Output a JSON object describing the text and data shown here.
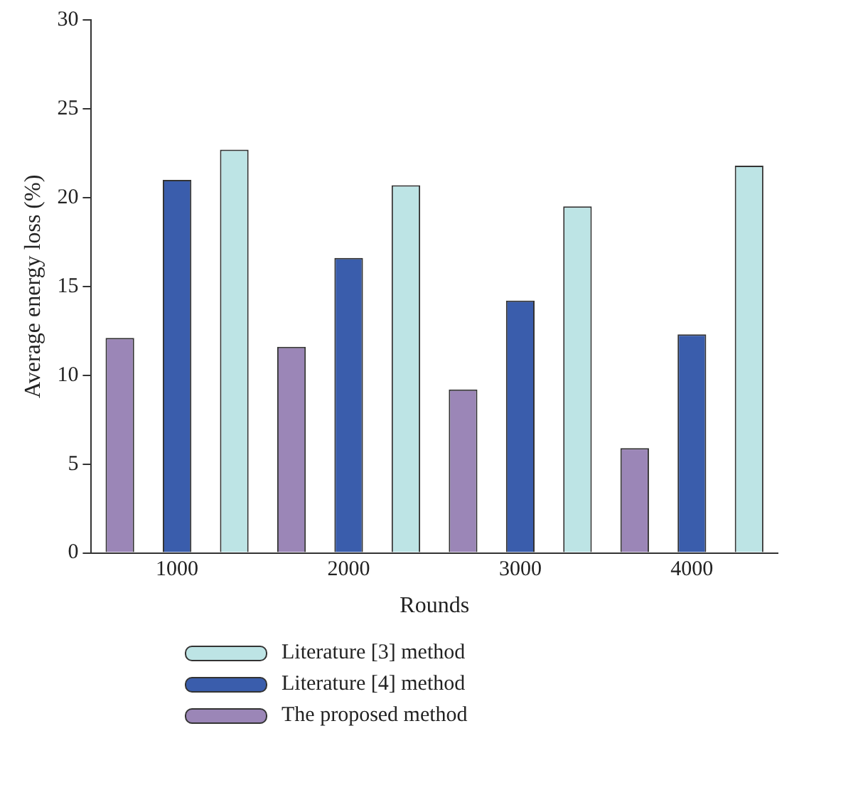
{
  "chart_data": {
    "type": "bar",
    "xlabel": "Rounds",
    "ylabel": "Average energy loss (%)",
    "categories": [
      "1000",
      "2000",
      "3000",
      "4000"
    ],
    "series": [
      {
        "name": "Literature [3] method",
        "color": "#bde4e5",
        "values": [
          22.7,
          20.7,
          19.5,
          21.8
        ]
      },
      {
        "name": "Literature [4] method",
        "color": "#3a5dac",
        "values": [
          21.0,
          16.6,
          14.2,
          12.3
        ]
      },
      {
        "name": "The proposed method",
        "color": "#9b86b7",
        "values": [
          12.1,
          11.6,
          9.2,
          5.9
        ]
      }
    ],
    "ylim": [
      0,
      30
    ],
    "yticks": [
      0,
      5,
      10,
      15,
      20,
      25,
      30
    ],
    "grid": false,
    "legend": "bottom"
  }
}
